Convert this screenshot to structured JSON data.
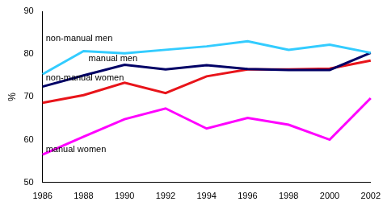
{
  "chart_data": {
    "type": "line",
    "y_label": "%",
    "categories": [
      "1986",
      "1988",
      "1990",
      "1992",
      "1994",
      "1996",
      "1998",
      "2000",
      "2002"
    ],
    "series": [
      {
        "name": "non-manual men",
        "color": "#33ccff",
        "values": [
          75.3,
          80.7,
          80.2,
          81.0,
          81.8,
          83.0,
          81.0,
          82.2,
          80.3
        ]
      },
      {
        "name": "manual men",
        "color": "#000066",
        "values": [
          72.4,
          75.0,
          77.5,
          76.4,
          77.4,
          76.5,
          76.3,
          76.3,
          80.3
        ]
      },
      {
        "name": "non-manual women",
        "color": "#e8141a",
        "values": [
          68.6,
          70.4,
          73.3,
          70.9,
          74.8,
          76.4,
          76.4,
          76.6,
          78.5
        ]
      },
      {
        "name": "manual women",
        "color": "#ff00ff",
        "values": [
          56.5,
          60.7,
          64.8,
          67.3,
          62.6,
          65.1,
          63.5,
          60.0,
          69.7
        ]
      }
    ],
    "ylim": [
      50,
      90
    ],
    "yticks": [
      50,
      60,
      70,
      80,
      90
    ],
    "grid": false
  }
}
